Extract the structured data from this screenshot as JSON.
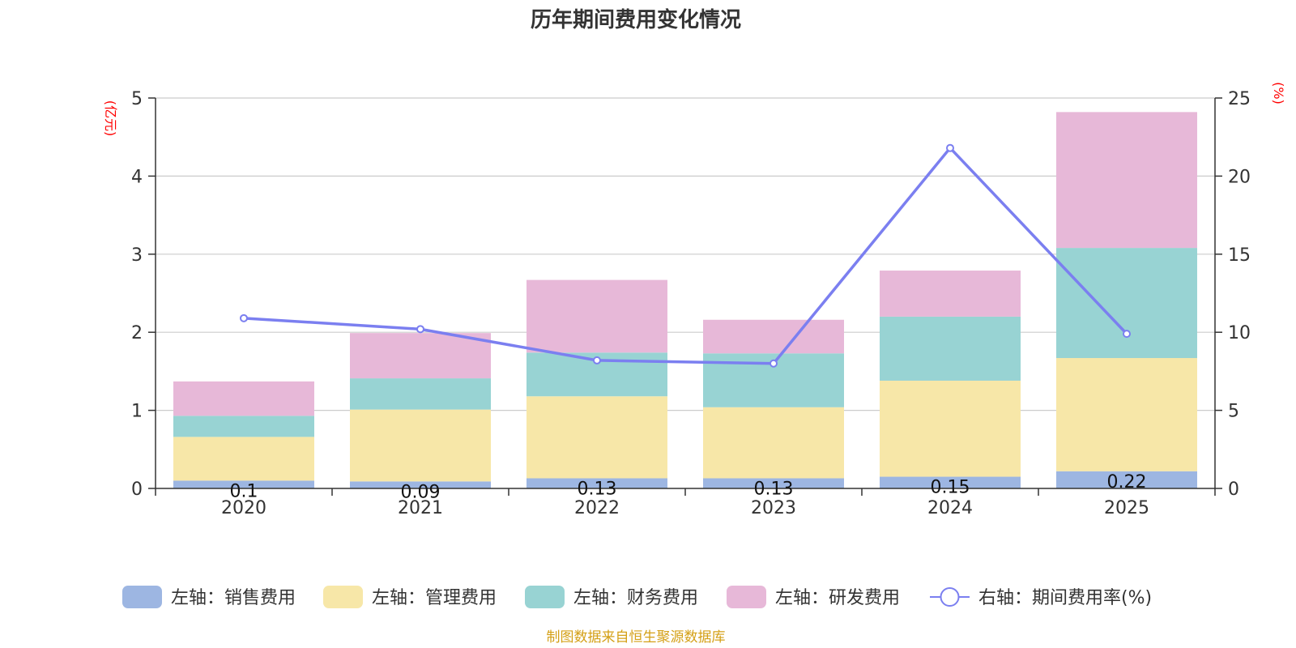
{
  "chart_data": {
    "type": "bar",
    "title": "历年期间费用变化情况",
    "categories": [
      "2020",
      "2021",
      "2022",
      "2023",
      "2024",
      "2025"
    ],
    "stacked": true,
    "left_axis": {
      "unit": "(亿元)",
      "ylim": [
        0,
        5
      ],
      "ticks": [
        "0",
        "1",
        "2",
        "3",
        "4",
        "5"
      ]
    },
    "right_axis": {
      "unit": "(%)",
      "ylim": [
        0,
        25
      ],
      "ticks": [
        "0",
        "5",
        "10",
        "15",
        "20",
        "25"
      ]
    },
    "series": [
      {
        "name": "左轴：销售费用",
        "axis": "left",
        "kind": "bar",
        "color": "#9db6e2",
        "values": [
          0.1,
          0.09,
          0.13,
          0.13,
          0.15,
          0.22
        ],
        "labels": [
          "0.1",
          "0.09",
          "0.13",
          "0.13",
          "0.15",
          "0.22"
        ]
      },
      {
        "name": "左轴：管理费用",
        "axis": "left",
        "kind": "bar",
        "color": "#f7e7a8",
        "values": [
          0.56,
          0.92,
          1.05,
          0.91,
          1.23,
          1.45
        ]
      },
      {
        "name": "左轴：财务费用",
        "axis": "left",
        "kind": "bar",
        "color": "#98d3d3",
        "values": [
          0.27,
          0.4,
          0.56,
          0.69,
          0.82,
          1.41
        ]
      },
      {
        "name": "左轴：研发费用",
        "axis": "left",
        "kind": "bar",
        "color": "#e7b8d8",
        "values": [
          0.44,
          0.58,
          0.93,
          0.43,
          0.59,
          1.74
        ]
      },
      {
        "name": "右轴：期间费用率(%)",
        "axis": "right",
        "kind": "line",
        "color": "#7b7ff0",
        "values": [
          10.9,
          10.2,
          8.2,
          8.0,
          21.8,
          9.9
        ]
      }
    ],
    "grid": true,
    "legend_position": "bottom"
  },
  "source": "制图数据来自恒生聚源数据库",
  "colors": {
    "unit": "#ff0000",
    "source": "#d4a017",
    "axis": "#333333",
    "grid": "#cccccc"
  }
}
